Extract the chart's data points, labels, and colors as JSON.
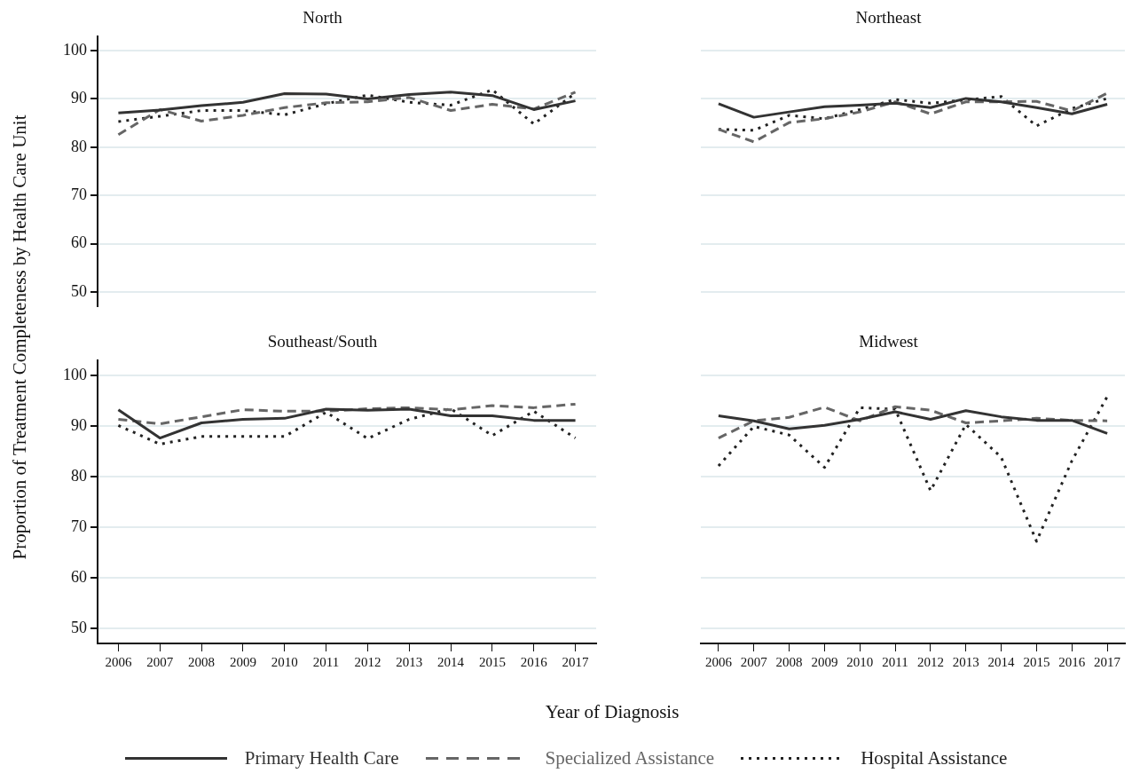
{
  "chart_data": [
    {
      "type": "line",
      "title": "North",
      "categories": [
        "2006",
        "2007",
        "2008",
        "2009",
        "2010",
        "2011",
        "2012",
        "2013",
        "2014",
        "2015",
        "2016",
        "2017"
      ],
      "ylim": [
        47,
        103
      ],
      "yticks": [
        50,
        60,
        70,
        80,
        90,
        100
      ],
      "grid": "y",
      "tick_labels": "y",
      "legend": "bottom",
      "series": [
        {
          "name": "Primary Health Care",
          "color": "#333333",
          "line_style": "solid",
          "values": [
            87.1,
            87.7,
            88.6,
            89.3,
            91.1,
            91,
            90,
            90.9,
            91.4,
            90.7,
            87.8,
            89.6
          ]
        },
        {
          "name": "Specialized Assistance",
          "color": "#666666",
          "line_style": "dashed",
          "values": [
            82.6,
            87.8,
            85.4,
            86.6,
            88.2,
            89.2,
            89.4,
            90.3,
            87.6,
            88.9,
            87.9,
            91.4
          ]
        },
        {
          "name": "Hospital Assistance",
          "color": "#222222",
          "line_style": "dotted",
          "values": [
            85.3,
            86.4,
            87.6,
            87.6,
            86.7,
            89,
            90.8,
            89.3,
            88.7,
            91.9,
            84.8,
            91.2
          ]
        }
      ]
    },
    {
      "type": "line",
      "title": "Northeast",
      "categories": [
        "2006",
        "2007",
        "2008",
        "2009",
        "2010",
        "2011",
        "2012",
        "2013",
        "2014",
        "2015",
        "2016",
        "2017"
      ],
      "yticks": [
        50,
        60,
        70,
        80,
        90,
        100
      ],
      "grid": "y",
      "tick_labels": false,
      "series": [
        {
          "color": "#333333",
          "line_style": "solid",
          "values": [
            89,
            86.2,
            87.3,
            88.4,
            88.7,
            89.1,
            88.2,
            90.1,
            89.4,
            88.2,
            86.9,
            88.9
          ]
        },
        {
          "color": "#666666",
          "line_style": "dashed",
          "values": [
            83.7,
            81.1,
            85.1,
            85.9,
            87.3,
            89.4,
            86.9,
            89.4,
            89.4,
            89.5,
            87.5,
            91.2
          ]
        },
        {
          "color": "#222222",
          "line_style": "dotted",
          "values": [
            83.7,
            83.5,
            86.6,
            85.9,
            87.8,
            89.9,
            89.1,
            89.8,
            90.5,
            84.4,
            88,
            90.1
          ]
        }
      ]
    },
    {
      "type": "line",
      "title": "Southeast/South",
      "xlabel": "Year of Diagnosis",
      "ylabel": "Proportion of Treatment Completeness by Health Care Unit",
      "categories": [
        "2006",
        "2007",
        "2008",
        "2009",
        "2010",
        "2011",
        "2012",
        "2013",
        "2014",
        "2015",
        "2016",
        "2017"
      ],
      "ylim": [
        47,
        103
      ],
      "yticks": [
        50,
        60,
        70,
        80,
        90,
        100
      ],
      "grid": "y",
      "series": [
        {
          "color": "#333333",
          "line_style": "solid",
          "values": [
            93.2,
            87.6,
            90.6,
            91.3,
            91.5,
            93.3,
            93.1,
            93.3,
            92,
            92,
            91.1,
            91.1
          ]
        },
        {
          "color": "#666666",
          "line_style": "dashed",
          "values": [
            91.3,
            90.4,
            91.8,
            93.2,
            92.9,
            92.9,
            93.4,
            93.6,
            93.2,
            94,
            93.6,
            94.3
          ]
        },
        {
          "color": "#222222",
          "line_style": "dotted",
          "values": [
            90.1,
            86.4,
            87.9,
            87.9,
            87.9,
            92.7,
            87.5,
            91.3,
            93.4,
            88.1,
            92.9,
            87.6
          ]
        }
      ]
    },
    {
      "type": "line",
      "title": "Midwest",
      "categories": [
        "2006",
        "2007",
        "2008",
        "2009",
        "2010",
        "2011",
        "2012",
        "2013",
        "2014",
        "2015",
        "2016",
        "2017"
      ],
      "yticks": [
        50,
        60,
        70,
        80,
        90,
        100
      ],
      "grid": "y",
      "tick_labels": "x",
      "series": [
        {
          "color": "#333333",
          "line_style": "solid",
          "values": [
            92,
            91,
            89.4,
            90.1,
            91.3,
            92.8,
            91.3,
            93,
            91.8,
            91.1,
            91.1,
            88.5
          ]
        },
        {
          "color": "#666666",
          "line_style": "dashed",
          "values": [
            87.6,
            91,
            91.7,
            93.7,
            91,
            93.8,
            93.1,
            90.6,
            91,
            91.5,
            91.1,
            91
          ]
        },
        {
          "color": "#222222",
          "line_style": "dotted",
          "values": [
            82.1,
            89.9,
            88.2,
            81.8,
            93.6,
            93.3,
            77.2,
            90.3,
            83.8,
            67.2,
            83.1,
            95.8
          ]
        }
      ]
    }
  ]
}
